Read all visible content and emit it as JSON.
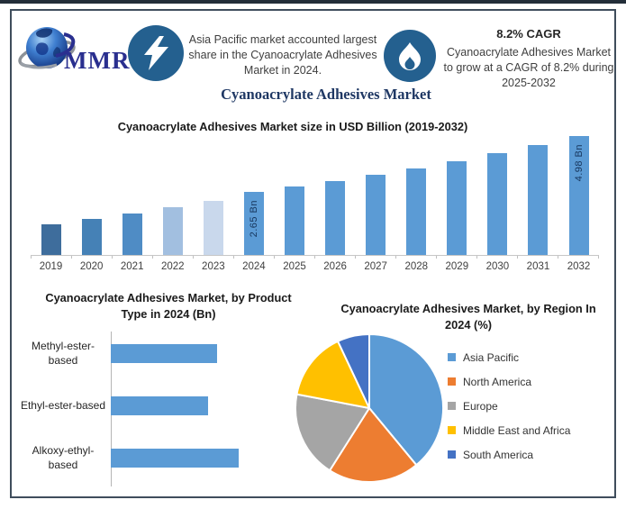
{
  "page": {
    "top_strip_color": "#232e39",
    "border_color": "#3f4d5c",
    "background": "#ffffff"
  },
  "header": {
    "logo": {
      "text": "MMR"
    },
    "icon_circle_color": "#24608f",
    "asia_text": "Asia Pacific market accounted largest share in the Cyanoacrylate Adhesives Market in 2024.",
    "cagr_title": "8.2% CAGR",
    "cagr_text": "Cyanoacrylate Adhesives Market to grow at a CAGR of 8.2% during 2025-2032"
  },
  "main_title": "Cyanoacrylate Adhesives Market",
  "chart_data": [
    {
      "type": "bar",
      "title": "Cyanoacrylate Adhesives Market size in USD Billion (2019-2032)",
      "categories": [
        "2019",
        "2020",
        "2021",
        "2022",
        "2023",
        "2024",
        "2025",
        "2026",
        "2027",
        "2028",
        "2029",
        "2030",
        "2031",
        "2032"
      ],
      "values": [
        1.3,
        1.5,
        1.75,
        2.0,
        2.28,
        2.65,
        2.87,
        3.1,
        3.36,
        3.63,
        3.93,
        4.25,
        4.6,
        4.98
      ],
      "bar_colors": [
        "#3e6d9c",
        "#4581b6",
        "#4f8cc5",
        "#a2bfe0",
        "#c9d8ec",
        "#5b9bd5",
        "#5b9bd5",
        "#5b9bd5",
        "#5b9bd5",
        "#5b9bd5",
        "#5b9bd5",
        "#5b9bd5",
        "#5b9bd5",
        "#5b9bd5"
      ],
      "data_labels": {
        "2024": "2.65 Bn",
        "2032": "4.98 Bn"
      },
      "xlabel": "",
      "ylabel": "",
      "ylim": [
        0,
        5.2
      ],
      "grid": false,
      "legend": false
    },
    {
      "type": "bar",
      "orientation": "horizontal",
      "title": "Cyanoacrylate Adhesives Market, by Product Type in 2024 (Bn)",
      "categories": [
        "Methyl-ester-\nbased",
        "Ethyl-ester-based",
        "Alkoxy-ethyl-\nbased"
      ],
      "values": [
        0.85,
        0.78,
        1.02
      ],
      "bar_color": "#5b9bd5",
      "xlabel": "",
      "ylabel": "",
      "grid": false,
      "legend": false
    },
    {
      "type": "pie",
      "title": "Cyanoacrylate Adhesives Market, by Region In 2024 (%)",
      "labels": [
        "Asia Pacific",
        "North America",
        "Europe",
        "Middle East and Africa",
        "South America"
      ],
      "values": [
        39,
        20,
        19,
        15,
        7
      ],
      "colors": [
        "#5b9bd5",
        "#ed7d31",
        "#a5a5a5",
        "#ffc000",
        "#4472c4"
      ],
      "legend_position": "right"
    }
  ]
}
